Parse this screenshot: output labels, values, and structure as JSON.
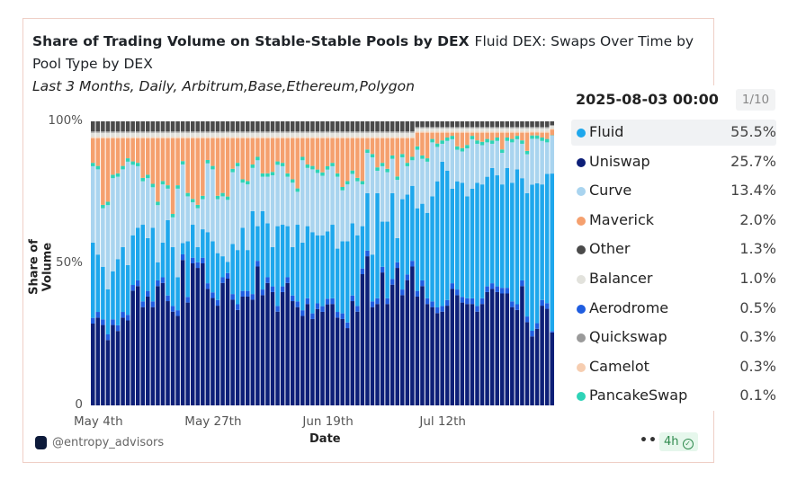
{
  "header": {
    "title": "Share of Trading Volume on Stable-Stable Pools by DEX",
    "query_name": "Fluid DEX: Swaps Over Time by Pool Type by DEX",
    "subtitle": "Last 3 Months, Daily, Arbitrum,Base,Ethereum,Polygon"
  },
  "footer": {
    "author": "@entropy_advisors",
    "more": "•••",
    "freshness": "4h",
    "check_icon": "check-circle-icon"
  },
  "tooltip": {
    "date": "2025-08-03 00:00",
    "page": "1/10",
    "rows": [
      {
        "name": "Fluid",
        "value": "55.5%"
      },
      {
        "name": "Uniswap",
        "value": "25.7%"
      },
      {
        "name": "Curve",
        "value": "13.4%"
      },
      {
        "name": "Maverick",
        "value": "2.0%"
      },
      {
        "name": "Other",
        "value": "1.3%"
      },
      {
        "name": "Balancer",
        "value": "1.0%"
      },
      {
        "name": "Aerodrome",
        "value": "0.5%"
      },
      {
        "name": "Quickswap",
        "value": "0.3%"
      },
      {
        "name": "Camelot",
        "value": "0.3%"
      },
      {
        "name": "PancakeSwap",
        "value": "0.1%"
      }
    ]
  },
  "chart_data": {
    "type": "bar",
    "stacked": true,
    "normalized": true,
    "title": "Share of Trading Volume on Stable-Stable Pools by DEX",
    "xlabel": "Date",
    "ylabel": "Share of Volume",
    "x_start": "2025-05-03",
    "x_end": "2025-08-03",
    "interval": "daily",
    "x_ticks": [
      "May 4th",
      "May 27th",
      "Jun 19th",
      "Jul 12th"
    ],
    "x_tick_dates": [
      "2025-05-04",
      "2025-05-27",
      "2025-06-19",
      "2025-07-12"
    ],
    "y_ticks": [
      "0",
      "50%",
      "100%"
    ],
    "ylim": [
      0,
      100
    ],
    "grid": false,
    "stack_order": [
      "Uniswap",
      "Aerodrome",
      "Fluid",
      "Curve",
      "PancakeSwap",
      "Maverick",
      "Camelot",
      "Balancer",
      "Quickswap",
      "Other"
    ],
    "colors": {
      "Fluid": "#1ea7ec",
      "Uniswap": "#0d1f78",
      "Curve": "#a9d4ef",
      "Maverick": "#f5a06e",
      "Other": "#4a4a4a",
      "Balancer": "#e2e2dc",
      "Aerodrome": "#1f5de0",
      "Quickswap": "#9a9a9a",
      "Camelot": "#f6cdb0",
      "PancakeSwap": "#2ed3b7"
    },
    "series": [
      {
        "name": "Uniswap",
        "values": [
          28.8,
          30.9,
          28.3,
          23.0,
          28.3,
          26.2,
          30.9,
          29.9,
          40.4,
          42.0,
          34.6,
          38.3,
          34.6,
          42.0,
          43.1,
          36.7,
          33.0,
          31.5,
          51.6,
          36.2,
          50.0,
          48.4,
          50.0,
          41.0,
          37.8,
          35.1,
          43.1,
          45.2,
          37.2,
          33.6,
          38.3,
          38.3,
          37.2,
          48.9,
          38.8,
          43.1,
          39.9,
          33.0,
          39.9,
          43.1,
          36.7,
          34.6,
          31.5,
          35.7,
          30.4,
          34,
          33,
          36,
          35.7,
          30.9,
          30.4,
          27.2,
          36.7,
          33.0,
          46.2,
          52.5,
          34.6,
          35.7,
          46.8,
          35.7,
          42.5,
          48.4,
          38.8,
          44.1,
          48.9,
          38.3,
          42.0,
          35.7,
          34.6,
          32.5,
          33.0,
          35.1,
          41.0,
          38.8,
          36.2,
          35.7,
          35.7,
          33.0,
          35.7,
          39.9,
          41.0,
          39.9,
          39.4,
          39.4,
          34.6,
          33.6,
          42.0,
          29.3,
          24.5,
          27.2,
          35.1,
          34.0,
          25.7
        ]
      },
      {
        "name": "Aerodrome",
        "values": [
          2,
          2,
          2,
          2,
          2,
          2,
          2,
          2,
          2,
          2,
          2,
          2,
          2,
          2,
          2,
          2,
          2,
          2,
          2,
          2,
          2,
          2,
          2,
          2,
          2,
          2,
          2,
          2,
          2,
          2,
          2,
          2,
          2,
          2,
          2,
          2,
          2,
          2,
          2,
          2,
          2,
          2,
          2,
          2,
          2,
          2,
          2,
          2,
          2,
          2,
          2,
          2,
          2,
          2,
          2,
          2,
          2,
          2,
          2,
          2,
          2,
          2,
          2,
          2,
          2,
          2,
          2,
          2,
          2,
          2,
          2,
          2,
          2,
          2,
          2,
          2,
          2,
          2,
          2,
          2,
          2,
          2,
          2,
          2,
          2,
          2,
          2,
          2,
          2,
          2,
          2,
          2,
          0.5
        ]
      },
      {
        "name": "Fluid",
        "values": [
          26.5,
          20.2,
          18.5,
          15.9,
          16.9,
          23.3,
          22.8,
          17.5,
          17.5,
          18.5,
          27.0,
          18.6,
          25.9,
          6.4,
          12.2,
          26.5,
          20.7,
          11.6,
          4,
          19.6,
          11.6,
          5.3,
          10,
          18,
          18,
          16.5,
          7.4,
          4,
          17.6,
          19.1,
          22.2,
          14.4,
          29.2,
          12.2,
          27.6,
          19,
          13.8,
          28.1,
          21.7,
          18,
          17,
          27,
          23.8,
          25.4,
          28.6,
          24,
          25,
          24,
          25.9,
          22.3,
          25.4,
          28.6,
          25.4,
          24.9,
          14.9,
          20.2,
          16.5,
          37,
          15.9,
          27,
          30.2,
          8.5,
          31.8,
          28.1,
          26.4,
          29.1,
          27,
          30.1,
          37,
          44.4,
          50.8,
          45.5,
          33.3,
          38.1,
          40.2,
          35.9,
          38.6,
          43.4,
          40.1,
          38.6,
          40.6,
          39.1,
          36.4,
          42.2,
          41.8,
          47.5,
          36,
          43.4,
          51.9,
          49.7,
          40.7,
          45.5,
          55.5
        ]
      },
      {
        "name": "Curve",
        "values": [
          26.9,
          30,
          20.6,
          29.6,
          32.8,
          29,
          27.4,
          36.4,
          24.8,
          21.7,
          15.3,
          21.1,
          14.3,
          20.1,
          20.5,
          11.1,
          10.5,
          31.2,
          27.9,
          15.8,
          7.9,
          13.7,
          10.6,
          24.2,
          25.3,
          19,
          21.1,
          22.1,
          25.3,
          29.5,
          15.9,
          23.1,
          15.2,
          23.2,
          12.1,
          16.4,
          25.3,
          21.6,
          20.6,
          17.4,
          22.7,
          11.6,
          29,
          20.5,
          22.1,
          22,
          21,
          22,
          20.6,
          25.3,
          17.9,
          20.0,
          17.4,
          19.0,
          14.7,
          14.2,
          34.2,
          7.9,
          19.5,
          17.4,
          12.1,
          20.5,
          14.7,
          10.0,
          9.0,
          20.6,
          15.8,
          18.0,
          19.0,
          12.1,
          6.3,
          10.5,
          17.4,
          11.1,
          11.0,
          16.9,
          17.4,
          13.7,
          13.8,
          12.1,
          8.5,
          12.1,
          11.1,
          9.5,
          14.2,
          10.6,
          12.1,
          13.7,
          16.3,
          15.8,
          15.3,
          11.1,
          13.4
        ]
      },
      {
        "name": "PancakeSwap",
        "values": [
          1.2,
          1.2,
          1.2,
          1.2,
          1.2,
          1.2,
          1.2,
          1.2,
          1.2,
          1.2,
          1.2,
          1.2,
          1.2,
          1.2,
          1.2,
          1.2,
          1.2,
          1.2,
          1.2,
          1.2,
          1.2,
          1.2,
          1.2,
          1.2,
          1.2,
          1.2,
          1.2,
          1.2,
          1.2,
          1.2,
          1.2,
          1.2,
          1.2,
          1.2,
          1.2,
          1.2,
          1.2,
          1.2,
          1.2,
          1.2,
          1.2,
          1.2,
          1.2,
          1.2,
          1.2,
          1.2,
          1.2,
          1.2,
          1.2,
          1.2,
          1.2,
          1.2,
          1.2,
          1.2,
          1.2,
          1.2,
          1.2,
          1.2,
          1.2,
          1.2,
          1.2,
          1.2,
          1.2,
          1.2,
          1.2,
          1.2,
          1.2,
          1.2,
          1.2,
          1.2,
          1.2,
          1.2,
          1.2,
          1.2,
          1.2,
          1.2,
          1.2,
          1.2,
          1.2,
          1.2,
          1.2,
          1.2,
          1.2,
          1.2,
          1.2,
          1.2,
          1.2,
          1.2,
          1.2,
          1.2,
          1.2,
          1.2,
          0.1
        ]
      },
      {
        "name": "Maverick",
        "values": [
          8.6,
          9.7,
          23.4,
          22.3,
          12.8,
          12.3,
          9.7,
          7.0,
          8.1,
          8.6,
          13.9,
          12.8,
          16.0,
          22.3,
          15.0,
          16.5,
          26.6,
          16.5,
          8.1,
          19.2,
          21.3,
          23.4,
          20.2,
          7.6,
          9.7,
          20.2,
          19.2,
          20.8,
          10.7,
          8.6,
          14.4,
          15.0,
          9.2,
          6.5,
          12.3,
          12.3,
          11.8,
          8.1,
          8.6,
          12.3,
          14.4,
          17.6,
          6.5,
          9.2,
          9.7,
          11,
          12,
          10,
          8.6,
          12.3,
          17.1,
          15.0,
          11.3,
          13.9,
          15.0,
          3.9,
          5.5,
          10.2,
          8.6,
          10.7,
          6.0,
          13.4,
          5.5,
          8.6,
          6.5,
          4.8,
          8.0,
          9.0,
          2.2,
          3.8,
          2.7,
          1.7,
          1.1,
          4.8,
          5.4,
          4.3,
          1.1,
          2.7,
          3.2,
          2.2,
          2.7,
          1.7,
          5.9,
          1.7,
          2.2,
          1.1,
          2.7,
          6.4,
          1.0,
          1.0,
          1.7,
          2.2,
          2.0
        ]
      },
      {
        "name": "Camelot",
        "values": [
          0.5,
          0.5,
          0.5,
          0.5,
          0.5,
          0.5,
          0.5,
          0.5,
          0.5,
          0.5,
          0.5,
          0.5,
          0.5,
          0.5,
          0.5,
          0.5,
          0.5,
          0.5,
          0.5,
          0.5,
          0.5,
          0.5,
          0.5,
          0.5,
          0.5,
          0.5,
          0.5,
          0.5,
          0.5,
          0.5,
          0.5,
          0.5,
          0.5,
          0.5,
          0.5,
          0.5,
          0.5,
          0.5,
          0.5,
          0.5,
          0.5,
          0.5,
          0.5,
          0.5,
          0.5,
          0.5,
          0.5,
          0.5,
          0.5,
          0.5,
          0.5,
          0.5,
          0.5,
          0.5,
          0.5,
          0.5,
          0.5,
          0.5,
          0.5,
          0.5,
          0.5,
          0.5,
          0.5,
          0.5,
          0.5,
          0.4,
          0.4,
          0.4,
          0.4,
          0.4,
          0.4,
          0.4,
          0.4,
          0.4,
          0.4,
          0.4,
          0.4,
          0.4,
          0.4,
          0.4,
          0.4,
          0.4,
          0.4,
          0.4,
          0.4,
          0.4,
          0.4,
          0.4,
          0.4,
          0.4,
          0.4,
          0.4,
          0.3
        ]
      },
      {
        "name": "Balancer",
        "values": [
          1.5,
          1.5,
          1.5,
          1.5,
          1.5,
          1.5,
          1.5,
          1.5,
          1.5,
          1.5,
          1.5,
          1.5,
          1.5,
          1.5,
          1.5,
          1.5,
          1.5,
          1.5,
          1.5,
          1.5,
          1.5,
          1.5,
          1.5,
          1.5,
          1.5,
          1.5,
          1.5,
          1.5,
          1.5,
          1.5,
          1.5,
          1.5,
          1.5,
          1.5,
          1.5,
          1.5,
          1.5,
          1.5,
          1.5,
          1.5,
          1.5,
          1.5,
          1.5,
          1.5,
          1.5,
          1.5,
          1.5,
          1.5,
          1.5,
          1.5,
          1.5,
          1.5,
          1.5,
          1.5,
          1.5,
          1.5,
          1.5,
          1.5,
          1.5,
          1.5,
          1.5,
          1.5,
          1.5,
          1.5,
          1.5,
          1.2,
          1.2,
          1.2,
          1.2,
          1.2,
          1.2,
          1.2,
          1.2,
          1.2,
          1.2,
          1.2,
          1.2,
          1.2,
          1.2,
          1.2,
          1.2,
          1.2,
          1.2,
          1.2,
          1.2,
          1.2,
          1.2,
          1.2,
          1.2,
          1.2,
          1.2,
          1.2,
          1.0
        ]
      },
      {
        "name": "Quickswap",
        "values": [
          0.5,
          0.5,
          0.5,
          0.5,
          0.5,
          0.5,
          0.5,
          0.5,
          0.5,
          0.5,
          0.5,
          0.5,
          0.5,
          0.5,
          0.5,
          0.5,
          0.5,
          0.5,
          0.5,
          0.5,
          0.5,
          0.5,
          0.5,
          0.5,
          0.5,
          0.5,
          0.5,
          0.5,
          0.5,
          0.5,
          0.5,
          0.5,
          0.5,
          0.5,
          0.5,
          0.5,
          0.5,
          0.5,
          0.5,
          0.5,
          0.5,
          0.5,
          0.5,
          0.5,
          0.5,
          0.5,
          0.5,
          0.5,
          0.5,
          0.5,
          0.5,
          0.5,
          0.5,
          0.5,
          0.5,
          0.5,
          0.5,
          0.5,
          0.5,
          0.5,
          0.5,
          0.5,
          0.5,
          0.5,
          0.5,
          0.4,
          0.4,
          0.4,
          0.4,
          0.4,
          0.4,
          0.4,
          0.4,
          0.4,
          0.4,
          0.4,
          0.4,
          0.4,
          0.4,
          0.4,
          0.4,
          0.4,
          0.4,
          0.4,
          0.4,
          0.4,
          0.4,
          0.4,
          0.4,
          0.4,
          0.4,
          0.4,
          0.3
        ]
      },
      {
        "name": "Other",
        "values": [
          3.5,
          3.5,
          3.5,
          3.5,
          3.5,
          3.5,
          3.5,
          3.5,
          3.5,
          3.5,
          3.5,
          3.5,
          3.5,
          3.5,
          3.5,
          3.5,
          3.5,
          3.5,
          3.5,
          3.5,
          3.5,
          3.5,
          3.5,
          3.5,
          3.5,
          3.5,
          3.5,
          3.5,
          3.5,
          3.5,
          3.5,
          3.5,
          3.5,
          3.5,
          3.5,
          3.5,
          3.5,
          3.5,
          3.5,
          3.5,
          3.5,
          3.5,
          3.5,
          3.5,
          3.5,
          3.5,
          3.5,
          3.5,
          3.5,
          3.5,
          3.5,
          3.5,
          3.5,
          3.5,
          3.5,
          3.5,
          3.5,
          3.5,
          3.5,
          3.5,
          3.5,
          3.5,
          3.5,
          3.5,
          3.5,
          2,
          2,
          2,
          2,
          2,
          2,
          2,
          2,
          2,
          2,
          2,
          2,
          2,
          2,
          2,
          2,
          2,
          2,
          2,
          2,
          2,
          2,
          2,
          2,
          2,
          2,
          2,
          1.3
        ]
      }
    ]
  }
}
